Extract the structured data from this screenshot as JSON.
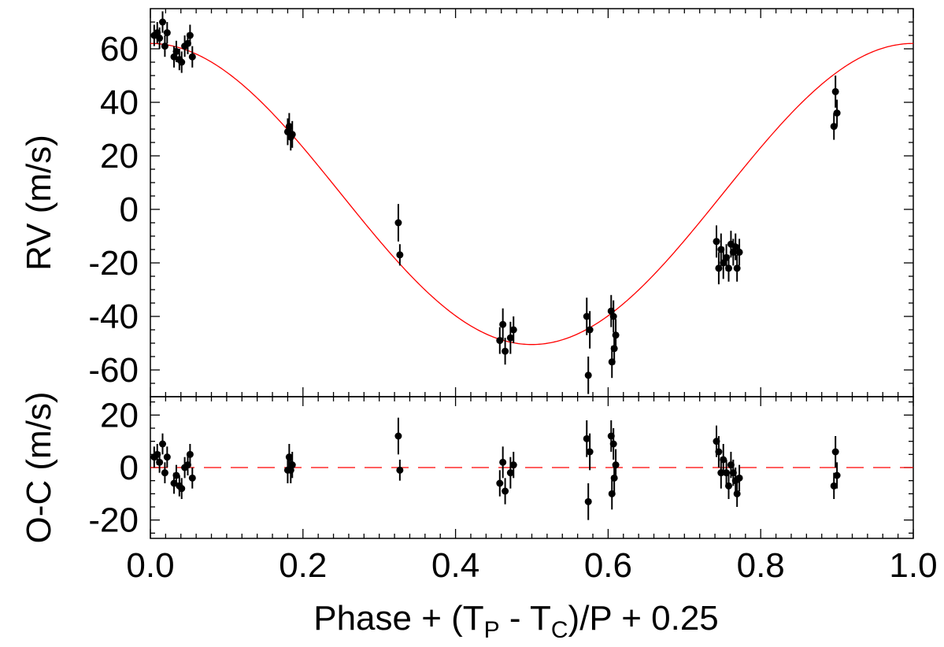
{
  "chart_data": [
    {
      "type": "scatter",
      "panel": "radial-velocity",
      "title": "",
      "xlabel": "",
      "ylabel": "RV (m/s)",
      "xlim": [
        0.0,
        1.0
      ],
      "ylim": [
        -70,
        75
      ],
      "yticks": [
        "60",
        "40",
        "20",
        "0",
        "-20",
        "-40",
        "-60"
      ],
      "grid": false,
      "legend": "none",
      "colors": {
        "points": "#000000",
        "model": "#ff0000"
      },
      "model_curve": {
        "name": "",
        "style": "solid",
        "offset": 5.75,
        "amplitude": 56.25,
        "phase_of_max": 0.0
      },
      "series": [
        {
          "name": "",
          "points": [
            {
              "x": 0.005,
              "y": 65,
              "err": 4
            },
            {
              "x": 0.009,
              "y": 66,
              "err": 4
            },
            {
              "x": 0.012,
              "y": 64,
              "err": 4
            },
            {
              "x": 0.016,
              "y": 70,
              "err": 4
            },
            {
              "x": 0.019,
              "y": 61,
              "err": 4
            },
            {
              "x": 0.022,
              "y": 66,
              "err": 4
            },
            {
              "x": 0.031,
              "y": 57,
              "err": 4
            },
            {
              "x": 0.034,
              "y": 59,
              "err": 4
            },
            {
              "x": 0.038,
              "y": 56,
              "err": 4
            },
            {
              "x": 0.041,
              "y": 55,
              "err": 4
            },
            {
              "x": 0.045,
              "y": 61,
              "err": 4
            },
            {
              "x": 0.049,
              "y": 62,
              "err": 4
            },
            {
              "x": 0.052,
              "y": 65,
              "err": 4
            },
            {
              "x": 0.055,
              "y": 57,
              "err": 4
            },
            {
              "x": 0.18,
              "y": 29,
              "err": 5
            },
            {
              "x": 0.182,
              "y": 31,
              "err": 5
            },
            {
              "x": 0.184,
              "y": 27,
              "err": 5
            },
            {
              "x": 0.186,
              "y": 28,
              "err": 5
            },
            {
              "x": 0.325,
              "y": -5,
              "err": 7
            },
            {
              "x": 0.327,
              "y": -17,
              "err": 4
            },
            {
              "x": 0.458,
              "y": -49,
              "err": 5
            },
            {
              "x": 0.462,
              "y": -43,
              "err": 6
            },
            {
              "x": 0.465,
              "y": -53,
              "err": 5
            },
            {
              "x": 0.472,
              "y": -48,
              "err": 6
            },
            {
              "x": 0.476,
              "y": -45,
              "err": 5
            },
            {
              "x": 0.572,
              "y": -40,
              "err": 7
            },
            {
              "x": 0.574,
              "y": -62,
              "err": 7
            },
            {
              "x": 0.576,
              "y": -45,
              "err": 7
            },
            {
              "x": 0.604,
              "y": -38,
              "err": 6
            },
            {
              "x": 0.605,
              "y": -57,
              "err": 6
            },
            {
              "x": 0.607,
              "y": -40,
              "err": 6
            },
            {
              "x": 0.608,
              "y": -52,
              "err": 6
            },
            {
              "x": 0.61,
              "y": -47,
              "err": 6
            },
            {
              "x": 0.742,
              "y": -12,
              "err": 6
            },
            {
              "x": 0.745,
              "y": -22,
              "err": 6
            },
            {
              "x": 0.748,
              "y": -15,
              "err": 6
            },
            {
              "x": 0.751,
              "y": -20,
              "err": 6
            },
            {
              "x": 0.755,
              "y": -18,
              "err": 5
            },
            {
              "x": 0.758,
              "y": -22,
              "err": 5
            },
            {
              "x": 0.761,
              "y": -13,
              "err": 5
            },
            {
              "x": 0.764,
              "y": -16,
              "err": 5
            },
            {
              "x": 0.767,
              "y": -14,
              "err": 5
            },
            {
              "x": 0.769,
              "y": -22,
              "err": 5
            },
            {
              "x": 0.772,
              "y": -16,
              "err": 5
            },
            {
              "x": 0.896,
              "y": 31,
              "err": 5
            },
            {
              "x": 0.898,
              "y": 44,
              "err": 6
            },
            {
              "x": 0.9,
              "y": 36,
              "err": 5
            }
          ]
        }
      ]
    },
    {
      "type": "scatter",
      "panel": "residuals",
      "title": "",
      "xlabel": "Phase + (T",
      "xlabel_sub_p": "P",
      "xlabel_mid": " - T",
      "xlabel_sub_c": "C",
      "xlabel_tail": ")/P + 0.25",
      "ylabel": "O-C (m/s)",
      "xlim": [
        0.0,
        1.0
      ],
      "ylim": [
        -27,
        27
      ],
      "xticks": [
        "0.0",
        "0.2",
        "0.4",
        "0.6",
        "0.8",
        "1.0"
      ],
      "yticks": [
        "20",
        "0",
        "-20"
      ],
      "grid": false,
      "legend": "none",
      "colors": {
        "points": "#000000",
        "zero_line": "#ff0000"
      },
      "reference_line": {
        "y": 0,
        "style": "dashed"
      },
      "series": [
        {
          "name": "",
          "points": [
            {
              "x": 0.005,
              "y": 4,
              "err": 4
            },
            {
              "x": 0.009,
              "y": 5,
              "err": 4
            },
            {
              "x": 0.012,
              "y": 2,
              "err": 4
            },
            {
              "x": 0.016,
              "y": 9,
              "err": 4
            },
            {
              "x": 0.019,
              "y": -2,
              "err": 4
            },
            {
              "x": 0.022,
              "y": 4,
              "err": 4
            },
            {
              "x": 0.031,
              "y": -6,
              "err": 4
            },
            {
              "x": 0.034,
              "y": -3,
              "err": 4
            },
            {
              "x": 0.038,
              "y": -7,
              "err": 4
            },
            {
              "x": 0.041,
              "y": -8,
              "err": 4
            },
            {
              "x": 0.045,
              "y": 0,
              "err": 4
            },
            {
              "x": 0.049,
              "y": 1,
              "err": 4
            },
            {
              "x": 0.052,
              "y": 5,
              "err": 4
            },
            {
              "x": 0.055,
              "y": -4,
              "err": 4
            },
            {
              "x": 0.18,
              "y": -1,
              "err": 5
            },
            {
              "x": 0.182,
              "y": 4,
              "err": 5
            },
            {
              "x": 0.184,
              "y": -1,
              "err": 5
            },
            {
              "x": 0.186,
              "y": 1,
              "err": 5
            },
            {
              "x": 0.325,
              "y": 12,
              "err": 7
            },
            {
              "x": 0.327,
              "y": -1,
              "err": 4
            },
            {
              "x": 0.458,
              "y": -6,
              "err": 5
            },
            {
              "x": 0.462,
              "y": 2,
              "err": 6
            },
            {
              "x": 0.465,
              "y": -9,
              "err": 5
            },
            {
              "x": 0.472,
              "y": -2,
              "err": 6
            },
            {
              "x": 0.476,
              "y": 1,
              "err": 5
            },
            {
              "x": 0.572,
              "y": 11,
              "err": 7
            },
            {
              "x": 0.574,
              "y": -13,
              "err": 7
            },
            {
              "x": 0.576,
              "y": 6,
              "err": 7
            },
            {
              "x": 0.604,
              "y": 12,
              "err": 6
            },
            {
              "x": 0.605,
              "y": -10,
              "err": 6
            },
            {
              "x": 0.607,
              "y": 9,
              "err": 6
            },
            {
              "x": 0.608,
              "y": -4,
              "err": 6
            },
            {
              "x": 0.61,
              "y": 1,
              "err": 6
            },
            {
              "x": 0.742,
              "y": 10,
              "err": 6
            },
            {
              "x": 0.745,
              "y": 6,
              "err": 6
            },
            {
              "x": 0.748,
              "y": -2,
              "err": 6
            },
            {
              "x": 0.751,
              "y": 3,
              "err": 6
            },
            {
              "x": 0.755,
              "y": -2,
              "err": 5
            },
            {
              "x": 0.758,
              "y": -7,
              "err": 5
            },
            {
              "x": 0.761,
              "y": 1,
              "err": 5
            },
            {
              "x": 0.764,
              "y": -2,
              "err": 5
            },
            {
              "x": 0.767,
              "y": -5,
              "err": 5
            },
            {
              "x": 0.769,
              "y": -10,
              "err": 5
            },
            {
              "x": 0.772,
              "y": -4,
              "err": 5
            },
            {
              "x": 0.896,
              "y": -7,
              "err": 5
            },
            {
              "x": 0.898,
              "y": 6,
              "err": 6
            },
            {
              "x": 0.9,
              "y": -3,
              "err": 5
            }
          ]
        }
      ]
    }
  ]
}
